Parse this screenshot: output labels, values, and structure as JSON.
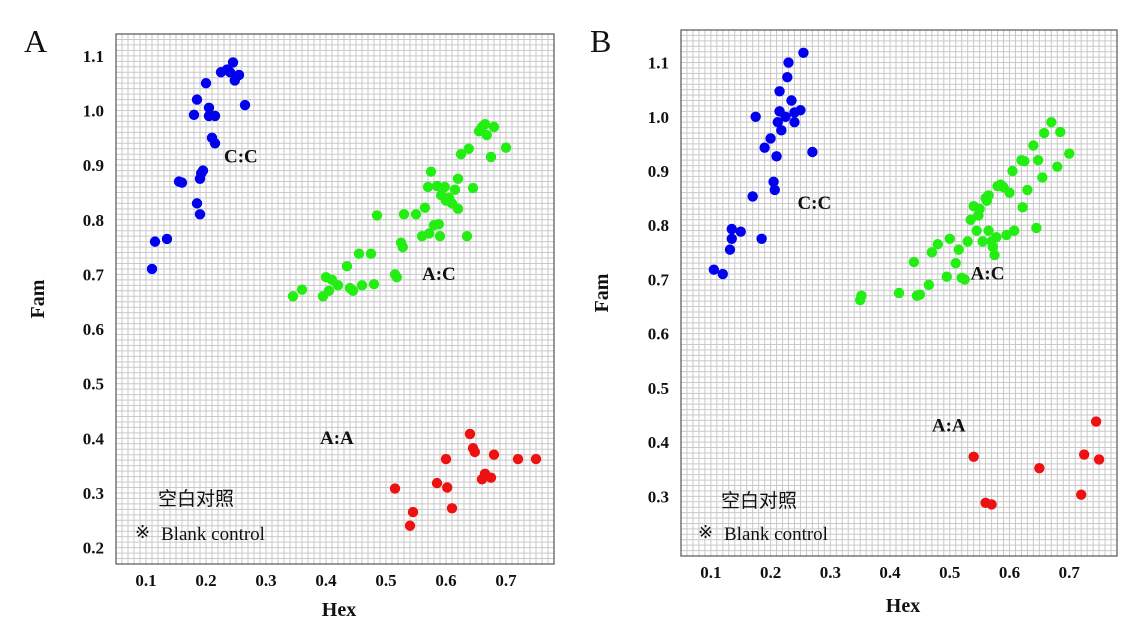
{
  "chart_data": [
    {
      "type": "scatter",
      "panel_label": "A",
      "xlabel": "Hex",
      "ylabel": "Fam",
      "xlim": [
        0.05,
        0.78
      ],
      "ylim": [
        0.17,
        1.14
      ],
      "x_ticks": [
        "0.1",
        "0.2",
        "0.3",
        "0.4",
        "0.5",
        "0.6",
        "0.7"
      ],
      "y_ticks": [
        "0.2",
        "0.3",
        "0.4",
        "0.5",
        "0.6",
        "0.7",
        "0.8",
        "0.9",
        "1.0",
        "1.1"
      ],
      "grid": true,
      "legend": {
        "symbol": "※",
        "title_cn": "空白对照",
        "label": "Blank control",
        "position": "bottom-left"
      },
      "series": [
        {
          "name": "C:C",
          "color": "#0000ee",
          "points": [
            [
              0.11,
              0.71
            ],
            [
              0.115,
              0.76
            ],
            [
              0.135,
              0.765
            ],
            [
              0.155,
              0.87
            ],
            [
              0.16,
              0.868
            ],
            [
              0.18,
              0.992
            ],
            [
              0.185,
              1.02
            ],
            [
              0.185,
              0.83
            ],
            [
              0.19,
              0.81
            ],
            [
              0.19,
              0.875
            ],
            [
              0.192,
              0.885
            ],
            [
              0.195,
              0.89
            ],
            [
              0.2,
              1.05
            ],
            [
              0.205,
              1.005
            ],
            [
              0.205,
              0.99
            ],
            [
              0.21,
              0.95
            ],
            [
              0.215,
              0.94
            ],
            [
              0.215,
              0.99
            ],
            [
              0.225,
              1.07
            ],
            [
              0.235,
              1.075
            ],
            [
              0.24,
              1.07
            ],
            [
              0.245,
              1.088
            ],
            [
              0.248,
              1.055
            ],
            [
              0.255,
              1.065
            ],
            [
              0.265,
              1.01
            ]
          ]
        },
        {
          "name": "A:C",
          "color": "#22ee11",
          "points": [
            [
              0.345,
              0.66
            ],
            [
              0.36,
              0.672
            ],
            [
              0.395,
              0.66
            ],
            [
              0.4,
              0.695
            ],
            [
              0.405,
              0.67
            ],
            [
              0.41,
              0.69
            ],
            [
              0.42,
              0.68
            ],
            [
              0.435,
              0.715
            ],
            [
              0.44,
              0.675
            ],
            [
              0.445,
              0.67
            ],
            [
              0.455,
              0.738
            ],
            [
              0.46,
              0.68
            ],
            [
              0.475,
              0.738
            ],
            [
              0.48,
              0.682
            ],
            [
              0.485,
              0.808
            ],
            [
              0.515,
              0.7
            ],
            [
              0.518,
              0.695
            ],
            [
              0.525,
              0.758
            ],
            [
              0.528,
              0.75
            ],
            [
              0.53,
              0.81
            ],
            [
              0.55,
              0.81
            ],
            [
              0.56,
              0.77
            ],
            [
              0.565,
              0.822
            ],
            [
              0.57,
              0.86
            ],
            [
              0.572,
              0.775
            ],
            [
              0.575,
              0.888
            ],
            [
              0.58,
              0.79
            ],
            [
              0.585,
              0.862
            ],
            [
              0.588,
              0.792
            ],
            [
              0.59,
              0.77
            ],
            [
              0.592,
              0.845
            ],
            [
              0.598,
              0.86
            ],
            [
              0.6,
              0.835
            ],
            [
              0.605,
              0.84
            ],
            [
              0.61,
              0.83
            ],
            [
              0.615,
              0.855
            ],
            [
              0.62,
              0.875
            ],
            [
              0.62,
              0.82
            ],
            [
              0.625,
              0.92
            ],
            [
              0.635,
              0.77
            ],
            [
              0.638,
              0.93
            ],
            [
              0.645,
              0.858
            ],
            [
              0.655,
              0.962
            ],
            [
              0.66,
              0.97
            ],
            [
              0.665,
              0.975
            ],
            [
              0.668,
              0.955
            ],
            [
              0.675,
              0.915
            ],
            [
              0.68,
              0.97
            ],
            [
              0.7,
              0.932
            ]
          ]
        },
        {
          "name": "A:A",
          "color": "#ee1111",
          "points": [
            [
              0.515,
              0.308
            ],
            [
              0.54,
              0.24
            ],
            [
              0.545,
              0.265
            ],
            [
              0.585,
              0.318
            ],
            [
              0.6,
              0.362
            ],
            [
              0.602,
              0.31
            ],
            [
              0.61,
              0.272
            ],
            [
              0.64,
              0.408
            ],
            [
              0.645,
              0.382
            ],
            [
              0.648,
              0.375
            ],
            [
              0.66,
              0.325
            ],
            [
              0.665,
              0.335
            ],
            [
              0.675,
              0.328
            ],
            [
              0.68,
              0.37
            ],
            [
              0.72,
              0.362
            ],
            [
              0.75,
              0.362
            ]
          ]
        }
      ],
      "cluster_labels": [
        {
          "text": "C:C",
          "x": 0.23,
          "y": 0.905
        },
        {
          "text": "A:C",
          "x": 0.56,
          "y": 0.69
        },
        {
          "text": "A:A",
          "x": 0.39,
          "y": 0.39
        }
      ]
    },
    {
      "type": "scatter",
      "panel_label": "B",
      "xlabel": "Hex",
      "ylabel": "Fam",
      "xlim": [
        0.05,
        0.78
      ],
      "ylim": [
        0.19,
        1.16
      ],
      "x_ticks": [
        "0.1",
        "0.2",
        "0.3",
        "0.4",
        "0.5",
        "0.6",
        "0.7"
      ],
      "y_ticks": [
        "0.3",
        "0.4",
        "0.5",
        "0.6",
        "0.7",
        "0.8",
        "0.9",
        "1.0",
        "1.1"
      ],
      "grid": true,
      "legend": {
        "symbol": "※",
        "title_cn": "空白对照",
        "label": "Blank control",
        "position": "bottom-left"
      },
      "series": [
        {
          "name": "C:C",
          "color": "#0000ee",
          "points": [
            [
              0.105,
              0.718
            ],
            [
              0.12,
              0.71
            ],
            [
              0.132,
              0.755
            ],
            [
              0.135,
              0.775
            ],
            [
              0.135,
              0.793
            ],
            [
              0.15,
              0.788
            ],
            [
              0.17,
              0.853
            ],
            [
              0.175,
              1.0
            ],
            [
              0.185,
              0.775
            ],
            [
              0.19,
              0.943
            ],
            [
              0.2,
              0.96
            ],
            [
              0.205,
              0.88
            ],
            [
              0.207,
              0.865
            ],
            [
              0.21,
              0.927
            ],
            [
              0.212,
              0.99
            ],
            [
              0.215,
              1.047
            ],
            [
              0.215,
              1.01
            ],
            [
              0.218,
              0.975
            ],
            [
              0.225,
              1.0
            ],
            [
              0.228,
              1.073
            ],
            [
              0.23,
              1.1
            ],
            [
              0.235,
              1.03
            ],
            [
              0.24,
              1.008
            ],
            [
              0.24,
              0.99
            ],
            [
              0.25,
              1.012
            ],
            [
              0.255,
              1.118
            ],
            [
              0.27,
              0.935
            ]
          ]
        },
        {
          "name": "A:C",
          "color": "#22ee11",
          "points": [
            [
              0.35,
              0.662
            ],
            [
              0.352,
              0.67
            ],
            [
              0.415,
              0.675
            ],
            [
              0.44,
              0.732
            ],
            [
              0.445,
              0.67
            ],
            [
              0.45,
              0.672
            ],
            [
              0.465,
              0.69
            ],
            [
              0.47,
              0.75
            ],
            [
              0.48,
              0.765
            ],
            [
              0.495,
              0.705
            ],
            [
              0.5,
              0.775
            ],
            [
              0.51,
              0.73
            ],
            [
              0.515,
              0.755
            ],
            [
              0.52,
              0.703
            ],
            [
              0.525,
              0.7
            ],
            [
              0.53,
              0.77
            ],
            [
              0.535,
              0.81
            ],
            [
              0.54,
              0.835
            ],
            [
              0.545,
              0.79
            ],
            [
              0.548,
              0.818
            ],
            [
              0.55,
              0.83
            ],
            [
              0.555,
              0.77
            ],
            [
              0.56,
              0.85
            ],
            [
              0.562,
              0.845
            ],
            [
              0.565,
              0.855
            ],
            [
              0.565,
              0.79
            ],
            [
              0.57,
              0.77
            ],
            [
              0.572,
              0.76
            ],
            [
              0.575,
              0.745
            ],
            [
              0.578,
              0.778
            ],
            [
              0.58,
              0.872
            ],
            [
              0.585,
              0.875
            ],
            [
              0.59,
              0.87
            ],
            [
              0.595,
              0.782
            ],
            [
              0.6,
              0.86
            ],
            [
              0.605,
              0.9
            ],
            [
              0.608,
              0.79
            ],
            [
              0.62,
              0.92
            ],
            [
              0.622,
              0.833
            ],
            [
              0.625,
              0.918
            ],
            [
              0.63,
              0.865
            ],
            [
              0.64,
              0.947
            ],
            [
              0.645,
              0.795
            ],
            [
              0.648,
              0.92
            ],
            [
              0.655,
              0.888
            ],
            [
              0.658,
              0.97
            ],
            [
              0.67,
              0.99
            ],
            [
              0.68,
              0.908
            ],
            [
              0.685,
              0.972
            ],
            [
              0.7,
              0.932
            ]
          ]
        },
        {
          "name": "A:A",
          "color": "#ee1111",
          "points": [
            [
              0.54,
              0.373
            ],
            [
              0.56,
              0.288
            ],
            [
              0.57,
              0.285
            ],
            [
              0.65,
              0.352
            ],
            [
              0.72,
              0.303
            ],
            [
              0.725,
              0.377
            ],
            [
              0.745,
              0.438
            ],
            [
              0.75,
              0.368
            ]
          ]
        }
      ],
      "cluster_labels": [
        {
          "text": "C:C",
          "x": 0.245,
          "y": 0.83
        },
        {
          "text": "A:C",
          "x": 0.535,
          "y": 0.7
        },
        {
          "text": "A:A",
          "x": 0.47,
          "y": 0.42
        }
      ]
    }
  ]
}
